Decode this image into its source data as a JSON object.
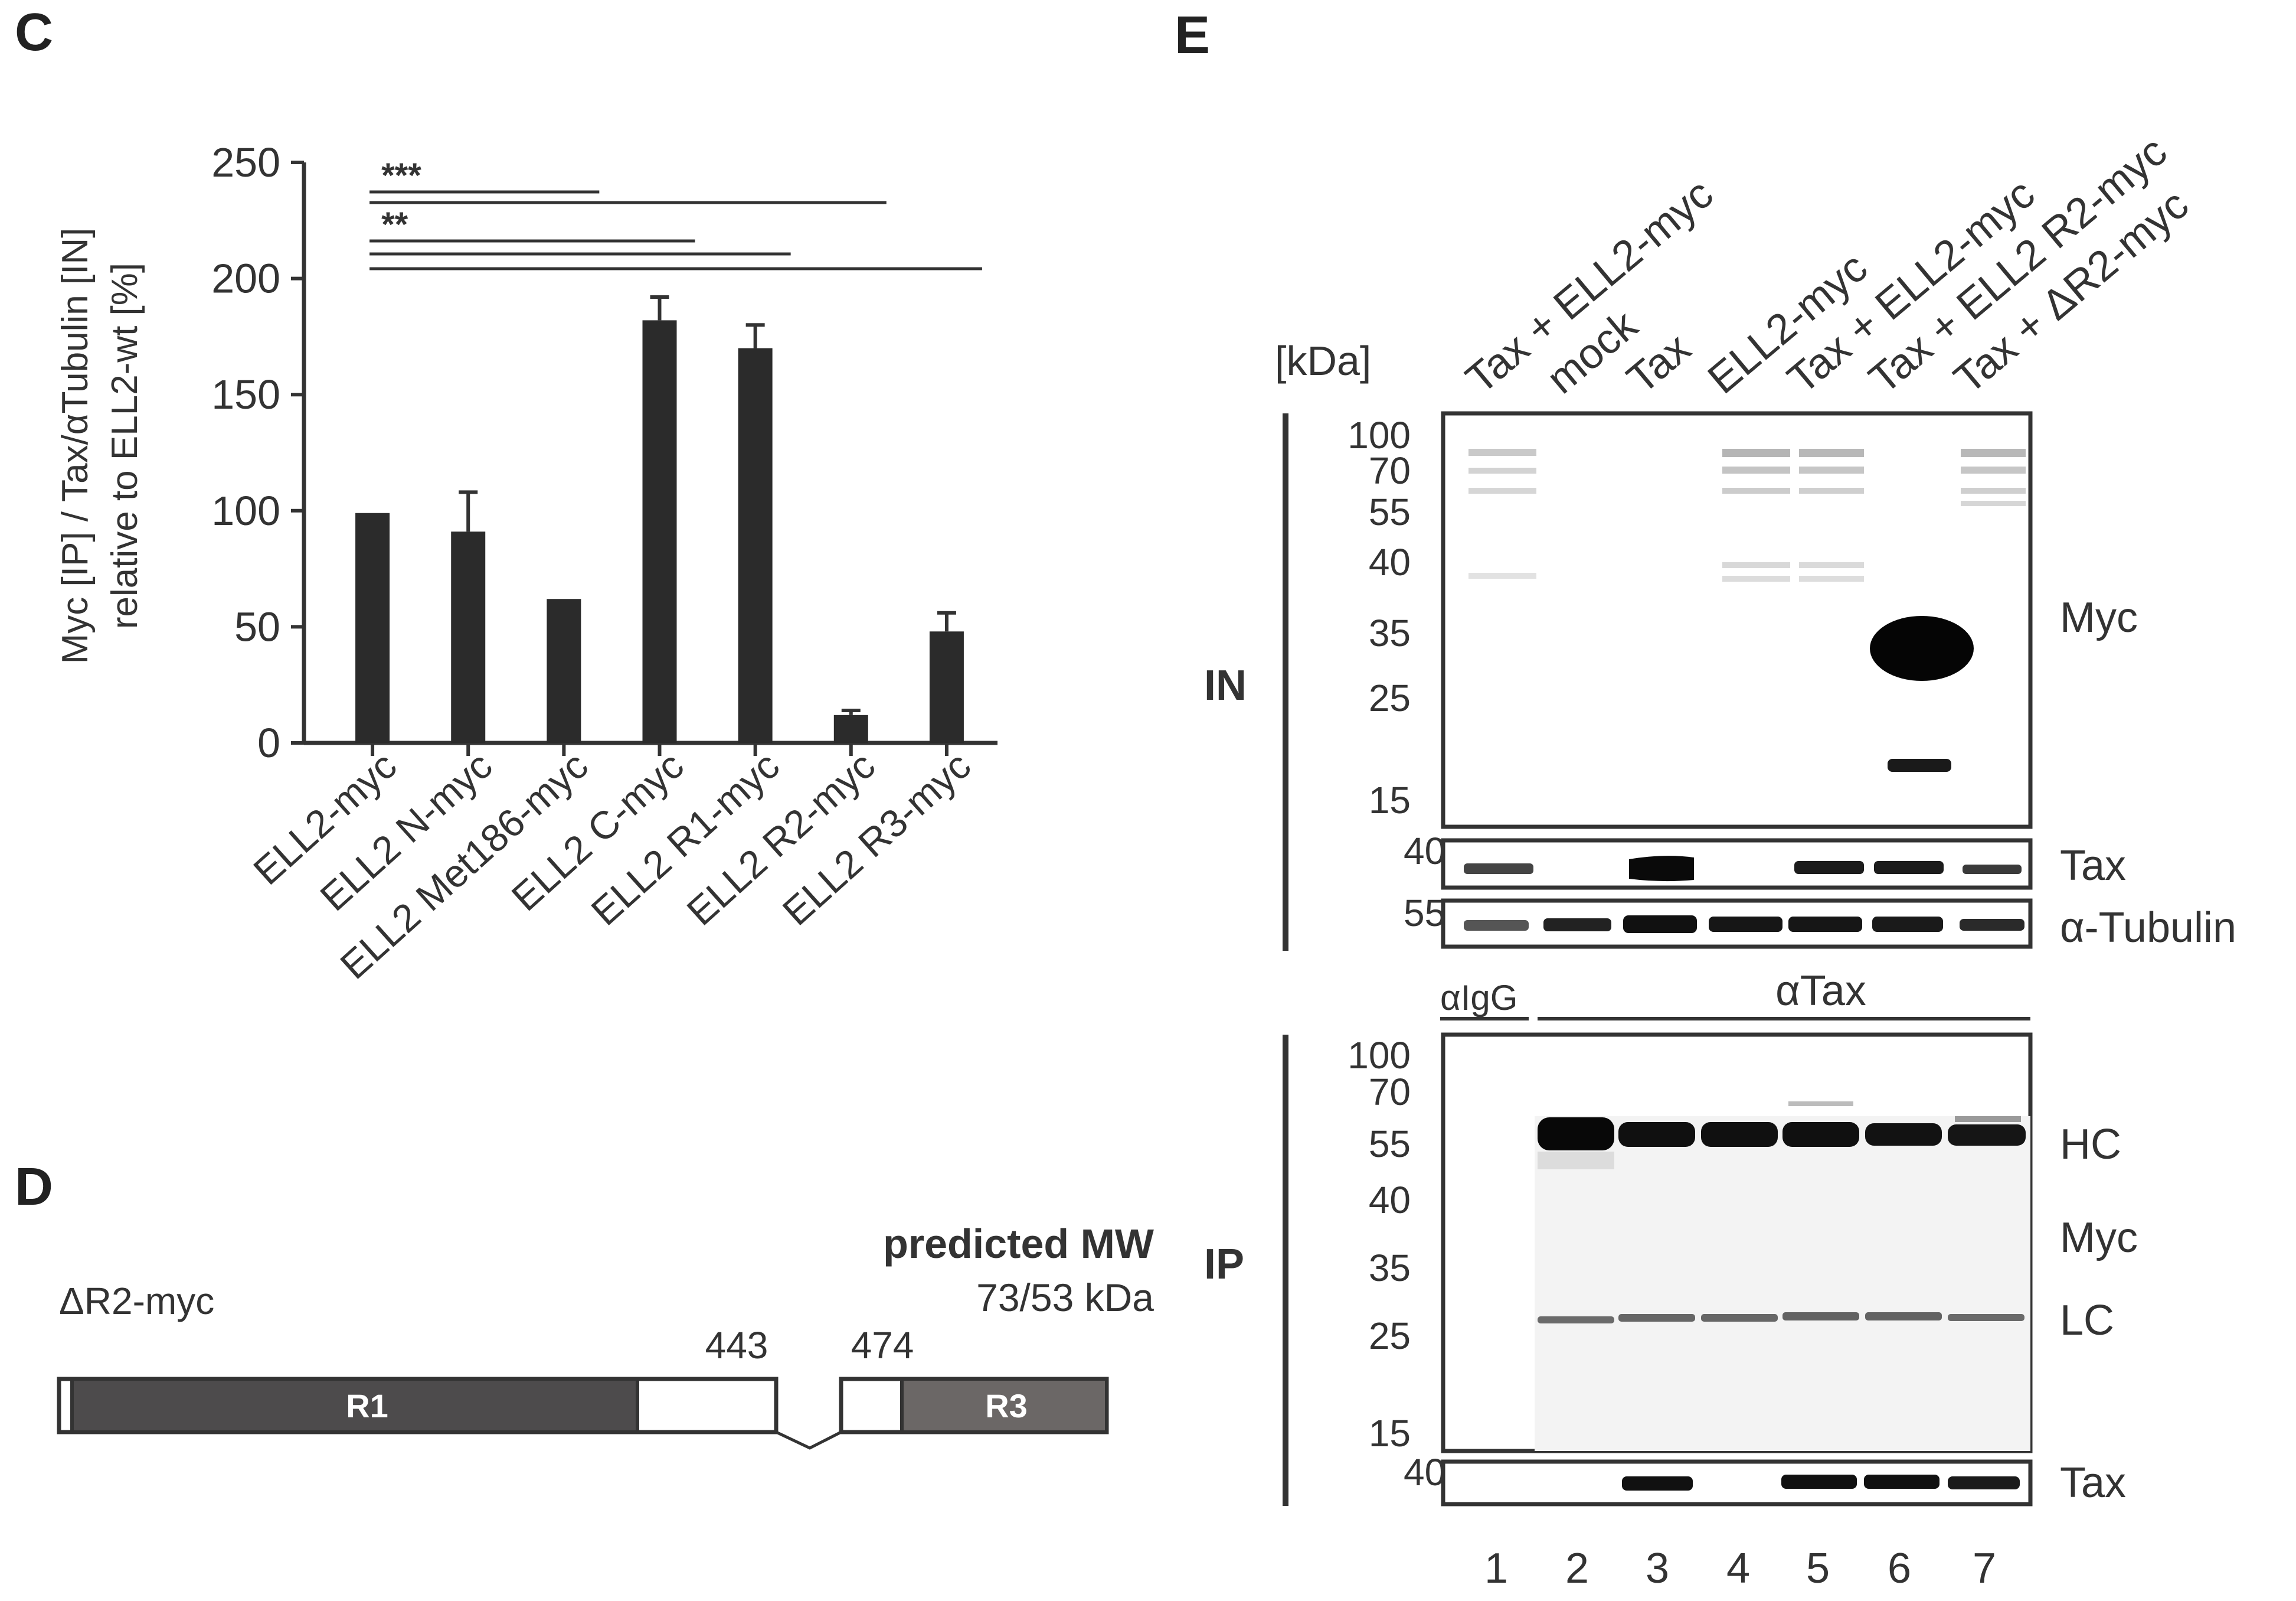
{
  "panels": {
    "C": "C",
    "D": "D",
    "E": "E"
  },
  "chart_data": {
    "type": "bar",
    "title": "",
    "ylabel_line1": "Myc [IP] / Tax/αTubulin [IN]",
    "ylabel_line2": "relative to ELL2-wt [%]",
    "xlabel": "",
    "ylim": [
      0,
      250
    ],
    "yticks": [
      0,
      50,
      100,
      150,
      200,
      250
    ],
    "categories": [
      "ELL2-myc",
      "ELL2 N-myc",
      "ELL2 Met186-myc",
      "ELL2 C-myc",
      "ELL2 R1-myc",
      "ELL2 R2-myc",
      "ELL2 R3-myc"
    ],
    "values": [
      99,
      91,
      62,
      182,
      170,
      12,
      48
    ],
    "errors": [
      0,
      17,
      0,
      10,
      10,
      2,
      8
    ],
    "bar_color": "#2b2b2b",
    "significance": [
      {
        "from": "ELL2-myc",
        "to": "ELL2 Met186-myc",
        "label": "***"
      },
      {
        "from": "ELL2-myc",
        "to": "ELL2 R2-myc",
        "label": ""
      },
      {
        "from": "ELL2-myc",
        "to": "ELL2 C-myc",
        "label": "**"
      },
      {
        "from": "ELL2-myc",
        "to": "ELL2 R1-myc",
        "label": ""
      },
      {
        "from": "ELL2-myc",
        "to": "ELL2 R3-myc",
        "label": ""
      }
    ]
  },
  "diagram": {
    "construct": "ΔR2-myc",
    "predicted_title": "predicted MW",
    "predicted_value": "73/53 kDa",
    "pos_443": "443",
    "pos_474": "474",
    "region_r1": "R1",
    "region_r3": "R3",
    "r1_color": "#4d4b4c",
    "r3_color": "#6b6766"
  },
  "blot": {
    "kda_label": "[kDa]",
    "lane_labels": [
      "Tax + ELL2-myc",
      "mock",
      "Tax",
      "ELL2-myc",
      "Tax + ELL2-myc",
      "Tax + ELL2 R2-myc",
      "Tax + ΔR2-myc"
    ],
    "lane_numbers": [
      "1",
      "2",
      "3",
      "4",
      "5",
      "6",
      "7"
    ],
    "in_label": "IN",
    "ip_label": "IP",
    "in_markers": [
      "100",
      "70",
      "55",
      "40",
      "35",
      "25",
      "15"
    ],
    "tax_marker": "40",
    "tubulin_marker": "55",
    "ip_markers": [
      "100",
      "70",
      "55",
      "40",
      "35",
      "25",
      "15"
    ],
    "ip_tax_marker": "40",
    "in_right": {
      "myc": "Myc",
      "tax": "Tax",
      "tubulin": "α-Tubulin"
    },
    "ip_right": {
      "hc": "HC",
      "myc": "Myc",
      "lc": "LC",
      "tax": "Tax"
    },
    "igg_label": "αIgG",
    "atax_label": "αTax"
  }
}
